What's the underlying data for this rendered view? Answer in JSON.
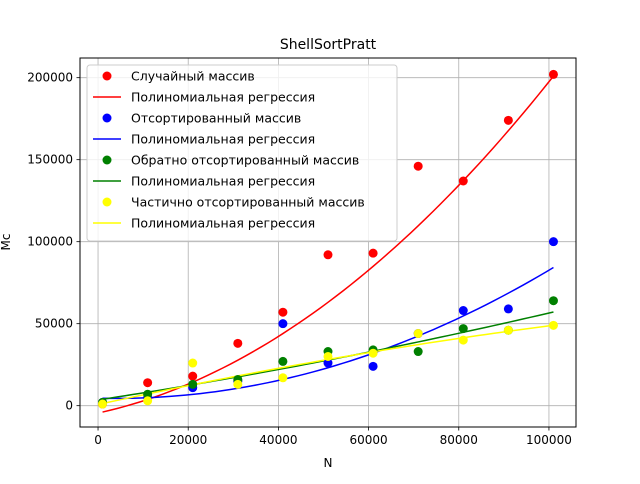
{
  "chart_data": {
    "type": "scatter",
    "title": "ShellSortPratt",
    "xlabel": "N",
    "ylabel": "Mc",
    "xlim": [
      -4000,
      106000
    ],
    "ylim": [
      -13000,
      212000
    ],
    "xticks": [
      0,
      20000,
      40000,
      60000,
      80000,
      100000
    ],
    "xtick_labels": [
      "0",
      "20000",
      "40000",
      "60000",
      "80000",
      "100000"
    ],
    "yticks": [
      0,
      50000,
      100000,
      150000,
      200000
    ],
    "ytick_labels": [
      "0",
      "50000",
      "100000",
      "150000",
      "200000"
    ],
    "grid": true,
    "legend_position": "top-left",
    "x": [
      1000,
      11000,
      21000,
      31000,
      41000,
      51000,
      61000,
      71000,
      81000,
      91000,
      101000
    ],
    "series": [
      {
        "name": "Случайный массив",
        "color": "#ff0000",
        "values": [
          1000,
          14000,
          18000,
          38000,
          57000,
          92000,
          93000,
          146000,
          137000,
          174000,
          202000
        ],
        "regression_name": "Полиномиальная регрессия",
        "regression_coefficients": [
          -4500,
          0.6,
          1.42e-05
        ]
      },
      {
        "name": "Отсортированный массив",
        "color": "#0000ff",
        "values": [
          2000,
          5000,
          11000,
          15000,
          50000,
          26000,
          24000,
          44000,
          58000,
          59000,
          100000
        ],
        "regression_name": "Полиномиальная регрессия",
        "regression_coefficients": [
          4600,
          -0.07,
          8.5e-06
        ]
      },
      {
        "name": "Обратно отсортированный массив",
        "color": "#008000",
        "values": [
          2000,
          7000,
          13000,
          16000,
          27000,
          33000,
          34000,
          33000,
          47000,
          46000,
          64000
        ],
        "regression_name": "Полиномиальная регрессия",
        "regression_coefficients": [
          3500,
          0.42,
          1.1e-06
        ]
      },
      {
        "name": "Частично отсортированный массив",
        "color": "#ffff00",
        "values": [
          1000,
          3000,
          26000,
          13000,
          17000,
          30000,
          32000,
          44000,
          40000,
          46000,
          49000
        ],
        "regression_name": "Полиномиальная регрессия",
        "regression_coefficients": [
          700,
          0.6,
          -1.2e-06
        ]
      }
    ]
  }
}
